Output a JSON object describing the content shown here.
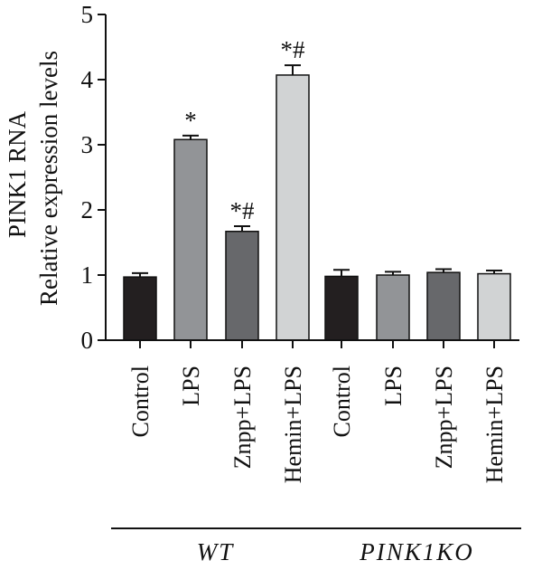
{
  "chart_data": {
    "type": "bar",
    "ylabel_line1": "PINK1 RNA",
    "ylabel_line2": "Relative expression levels",
    "ylim": [
      0,
      5
    ],
    "yticks": [
      "0",
      "1",
      "2",
      "3",
      "4",
      "5"
    ],
    "categories": [
      "Control",
      "LPS",
      "Znpp+LPS",
      "Hemin+LPS",
      "Control",
      "LPS",
      "Znpp+LPS",
      "Hemin+LPS"
    ],
    "values": [
      0.97,
      3.08,
      1.67,
      4.07,
      0.98,
      1.0,
      1.04,
      1.02
    ],
    "errors": [
      0.06,
      0.06,
      0.08,
      0.15,
      0.1,
      0.05,
      0.05,
      0.05
    ],
    "significance": [
      "",
      "*",
      "*#",
      "*#",
      "",
      "",
      "",
      ""
    ],
    "colors": [
      "#231f20",
      "#929497",
      "#67686b",
      "#d1d3d4",
      "#231f20",
      "#929497",
      "#67686b",
      "#d1d3d4"
    ],
    "groups": [
      {
        "label": "WT",
        "members": [
          0,
          1,
          2,
          3
        ]
      },
      {
        "label": "PINK1KO",
        "members": [
          4,
          5,
          6,
          7
        ]
      }
    ],
    "grid": false,
    "legend": "none"
  }
}
